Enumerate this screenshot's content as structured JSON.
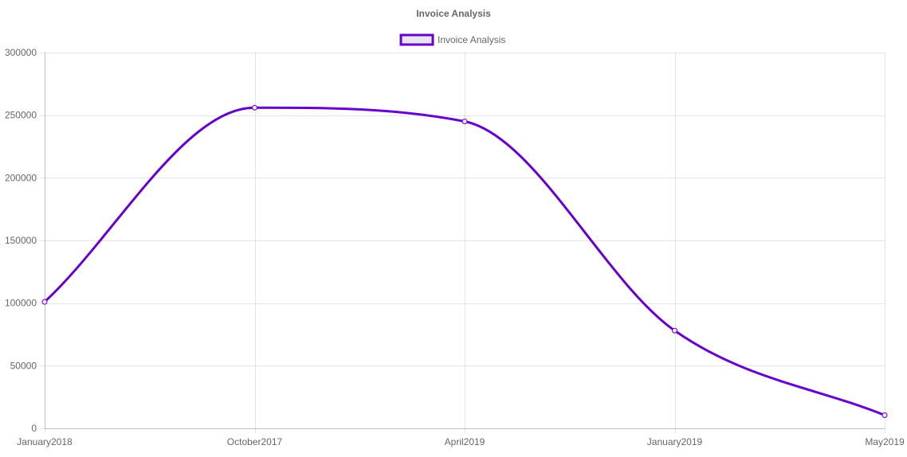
{
  "chart_data": {
    "type": "line",
    "title": "Invoice Analysis",
    "xlabel": "",
    "ylabel": "",
    "categories": [
      "January2018",
      "October2017",
      "April2019",
      "January2019",
      "May2019"
    ],
    "series": [
      {
        "name": "Invoice Analysis",
        "values": [
          101000,
          256000,
          245000,
          78000,
          10500
        ],
        "color": "#6600cc",
        "fill_color": "#e8e5ee"
      }
    ],
    "ylim": [
      0,
      300000
    ],
    "y_ticks": [
      "300000",
      "250000",
      "200000",
      "150000",
      "100000",
      "50000",
      "0"
    ],
    "grid": true,
    "legend": "top-center",
    "smooth": true
  }
}
